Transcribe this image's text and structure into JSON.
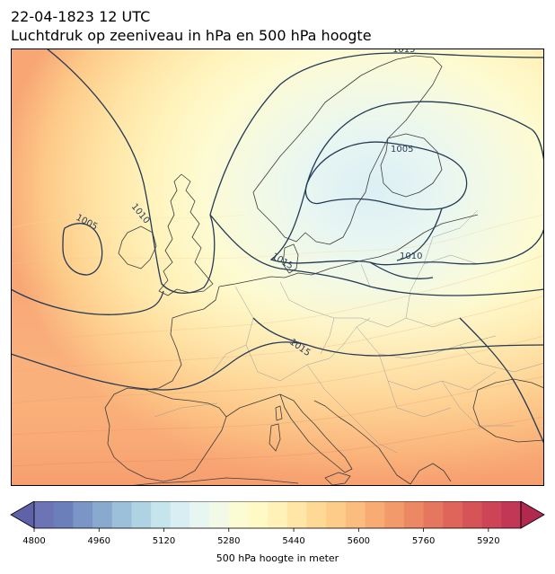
{
  "header": {
    "datetime": "22-04-1823 12 UTC",
    "subtitle": "Luchtdruk op zeeniveau in hPa en 500 hPa hoogte"
  },
  "colorbar": {
    "label": "500 hPa hoogte in meter",
    "min": 4800,
    "max": 6000,
    "step": 40,
    "ticks": [
      "4800",
      "4960",
      "5120",
      "5280",
      "5440",
      "5600",
      "5760",
      "5920"
    ],
    "colors": [
      "#6c74b6",
      "#6b7fba",
      "#7a95c6",
      "#89a9cf",
      "#9cbfda",
      "#b0d3e3",
      "#c6e4ec",
      "#d9eef2",
      "#e8f6f2",
      "#f2f9e6",
      "#fbfbd4",
      "#fff9c6",
      "#fff1b8",
      "#ffe6a6",
      "#fed996",
      "#fdcc88",
      "#fbbd7e",
      "#f8ab73",
      "#f39a6a",
      "#ed8864",
      "#e6775f",
      "#df655b",
      "#d65458",
      "#cc4456",
      "#c23755"
    ]
  },
  "isobar_labels": [
    {
      "text": "1015",
      "pos": "top-center"
    },
    {
      "text": "1005",
      "pos": "baltic"
    },
    {
      "text": "1010",
      "pos": "atlantic-left"
    },
    {
      "text": "1005",
      "pos": "atlantic-low"
    },
    {
      "text": "1015",
      "pos": "north-sea"
    },
    {
      "text": "1010",
      "pos": "poland"
    },
    {
      "text": "1015",
      "pos": "alps"
    }
  ],
  "style": {
    "isobar_color": "#243a55",
    "coast_color": "#3c3c3c",
    "border_color": "#9a9a9a"
  }
}
